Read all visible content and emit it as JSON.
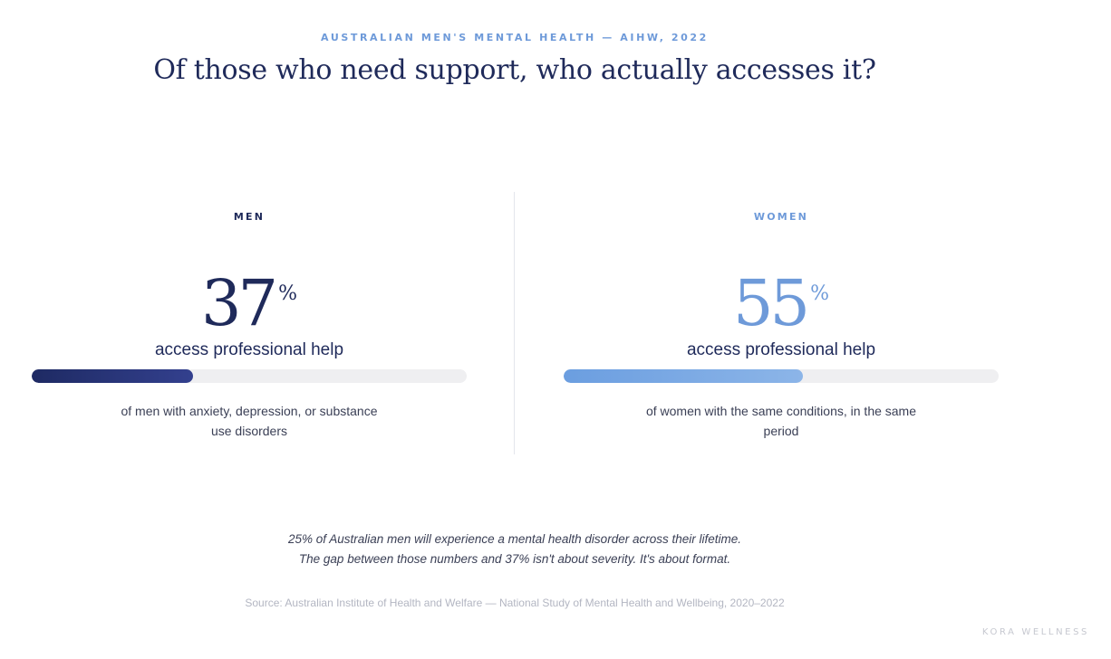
{
  "header": {
    "eyebrow": "AUSTRALIAN MEN'S MENTAL HEALTH — AIHW, 2022",
    "headline": "Of those who need support, who actually accesses it?"
  },
  "men": {
    "label": "MEN",
    "stat_number": "37",
    "stat_unit": "%",
    "caption": "access professional help",
    "progress_fraction": 0.37,
    "detail": "of men with anxiety, depression, or substance use disorders",
    "color": "#1f2a5a"
  },
  "women": {
    "label": "WOMEN",
    "stat_number": "55",
    "stat_unit": "%",
    "caption": "access professional help",
    "progress_fraction": 0.55,
    "detail": "of women with the same conditions, in the same period",
    "color": "#6e9ad9"
  },
  "footnote": {
    "line1": "25% of Australian men will experience a mental health disorder across their lifetime.",
    "line2": "The gap between those numbers and 37% isn't about severity. It's about format."
  },
  "source": "Source: Australian Institute of Health and Welfare — National Study of Mental Health and Wellbeing, 2020–2022",
  "brand": "KORA WELLNESS"
}
